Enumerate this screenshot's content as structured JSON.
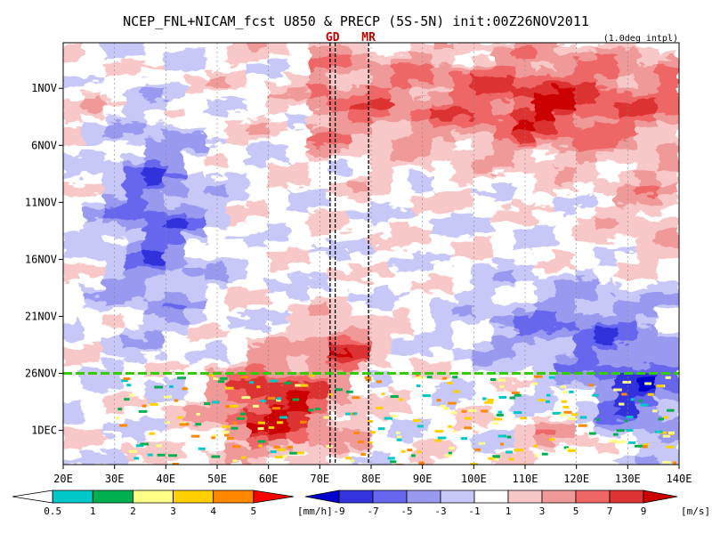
{
  "chart_data": {
    "type": "heatmap",
    "title": "NCEP_FNL+NICAM_fcst U850 & PRECP (5S-5N) init:00Z26NOV2011",
    "subtitle": "(1.0deg intpl)",
    "xlabel": "",
    "ylabel": "",
    "x_ticks": [
      "20E",
      "30E",
      "40E",
      "50E",
      "60E",
      "70E",
      "80E",
      "90E",
      "100E",
      "110E",
      "120E",
      "130E",
      "140E"
    ],
    "x_range": [
      20,
      140
    ],
    "y_ticks": [
      "1NOV",
      "6NOV",
      "11NOV",
      "16NOV",
      "21NOV",
      "26NOV",
      "1DEC"
    ],
    "y_range_days": [
      "28OCT2011",
      "4DEC2011"
    ],
    "markers": [
      {
        "label": "GD",
        "lon": 72.5,
        "lines": [
          72,
          73
        ]
      },
      {
        "label": "MR",
        "lon": 79.5,
        "lines": [
          79.5
        ]
      }
    ],
    "init_line": {
      "label": "26NOV",
      "color": "#33cc00"
    },
    "u850_regions": [
      {
        "desc": "westerly band Indian Ocean early Nov",
        "lon": [
          70,
          140
        ],
        "date": "4NOV",
        "u": 5
      },
      {
        "desc": "easterly band western IO",
        "lon": [
          25,
          55
        ],
        "date": "15NOV",
        "u": -5
      },
      {
        "desc": "strong westerly onset late Nov",
        "lon": [
          45,
          85
        ],
        "date": "30NOV",
        "u": 9
      },
      {
        "desc": "easterly band eastern IO late Nov",
        "lon": [
          85,
          140
        ],
        "date": "24NOV",
        "u": -5
      }
    ],
    "precip_colorbar": {
      "unit": "[mm/h]",
      "levels": [
        "0.5",
        "1",
        "2",
        "3",
        "4",
        "5"
      ],
      "colors": [
        "#ffffff",
        "#00c8c8",
        "#00b050",
        "#ffff88",
        "#ffd000",
        "#ff8800",
        "#ff0000"
      ]
    },
    "u_colorbar": {
      "unit": "[m/s]",
      "levels": [
        "-9",
        "-7",
        "-5",
        "-3",
        "-1",
        "1",
        "3",
        "5",
        "7",
        "9"
      ],
      "colors": [
        "#0000cc",
        "#3333dd",
        "#6666ee",
        "#9999f0",
        "#c8c8f8",
        "#ffffff",
        "#f8c8c8",
        "#f09999",
        "#ee6666",
        "#dd3333",
        "#cc0000"
      ]
    }
  }
}
